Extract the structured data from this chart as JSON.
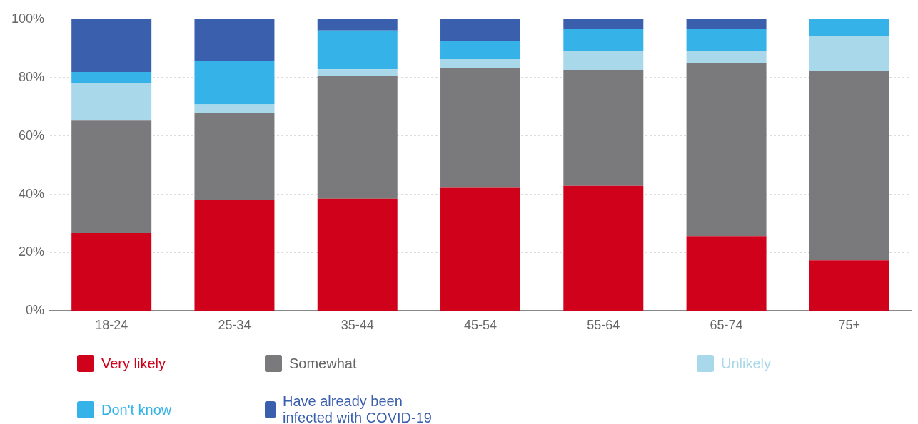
{
  "chart_data": {
    "type": "bar",
    "stacked": true,
    "categories": [
      "18-24",
      "25-34",
      "35-44",
      "45-54",
      "55-64",
      "65-74",
      "75+"
    ],
    "series": [
      {
        "name": "Very likely",
        "color": "#d0021b",
        "values": [
          26.7,
          38,
          38.5,
          42.2,
          42.9,
          25.7,
          17.4
        ]
      },
      {
        "name": "Somewhat",
        "color": "#7a7a7c",
        "values": [
          38.5,
          29.9,
          41.9,
          41.1,
          39.7,
          59.1,
          64.7
        ]
      },
      {
        "name": "Unlikely",
        "color": "#a8d8ea",
        "values": [
          13,
          2.9,
          2.4,
          3,
          6.4,
          4.4,
          12
        ]
      },
      {
        "name": "Don't know",
        "color": "#35b3e8",
        "values": [
          3.7,
          15,
          13.3,
          6.1,
          7.8,
          7.6,
          5.9
        ]
      },
      {
        "name": "Have already been infected with COVID-19",
        "color": "#3a5fad",
        "values": [
          18.1,
          14.2,
          3.9,
          7.6,
          3.2,
          3.2,
          0
        ]
      }
    ],
    "ylim": [
      0,
      100
    ],
    "yticks": [
      {
        "value": 0,
        "label": "0%"
      },
      {
        "value": 20,
        "label": "20%"
      },
      {
        "value": 40,
        "label": "40%"
      },
      {
        "value": 60,
        "label": "60%"
      },
      {
        "value": 80,
        "label": "80%"
      },
      {
        "value": 100,
        "label": "100%"
      }
    ],
    "grid": "y",
    "legend": "bottom"
  }
}
